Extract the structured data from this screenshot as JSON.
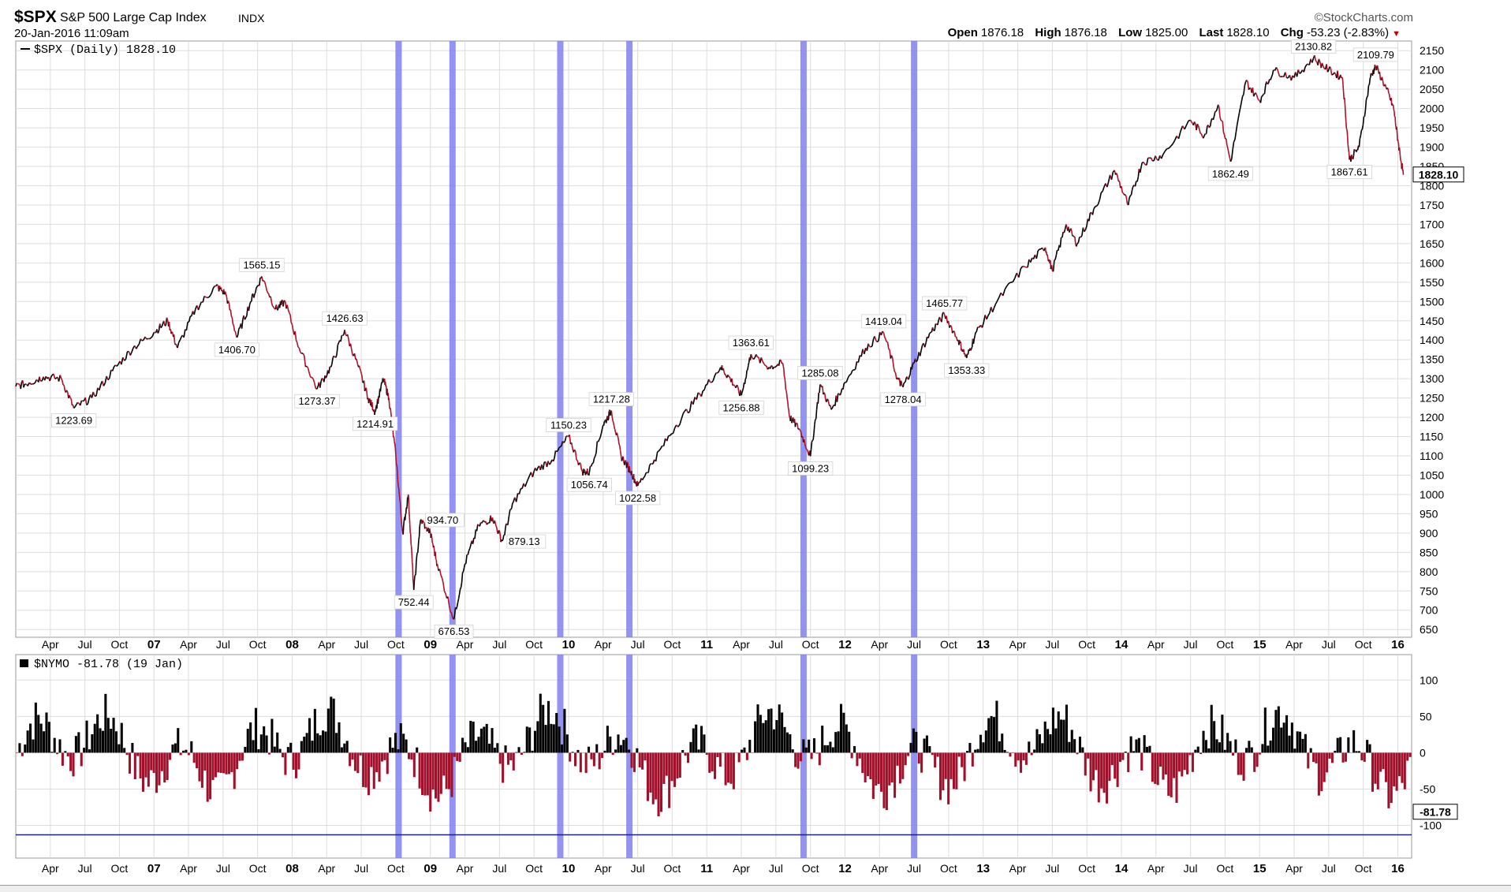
{
  "header": {
    "symbol": "$SPX",
    "name": "S&P 500 Large Cap Index",
    "exchange": "INDX",
    "datetime": "20-Jan-2016 11:09am",
    "brand": "©StockCharts.com",
    "open_label": "Open",
    "open": "1876.18",
    "high_label": "High",
    "high": "1876.18",
    "low_label": "Low",
    "low": "1825.00",
    "last_label": "Last",
    "last": "1828.10",
    "chg_label": "Chg",
    "chg": "-53.23 (-2.83%)"
  },
  "chart_data": [
    {
      "type": "line",
      "title": "$SPX (Daily) 1828.10",
      "legend": "$SPX (Daily) 1828.10",
      "last_value_label": "1828.10",
      "ylim": [
        630,
        2175
      ],
      "yticks": [
        650,
        700,
        750,
        800,
        850,
        900,
        950,
        1000,
        1050,
        1100,
        1150,
        1200,
        1250,
        1300,
        1350,
        1400,
        1450,
        1500,
        1550,
        1600,
        1650,
        1700,
        1750,
        1800,
        1850,
        1900,
        1950,
        2000,
        2050,
        2100,
        2150
      ],
      "xlim": [
        2006.0,
        2016.1
      ],
      "x_ticks": [
        {
          "x": 2006.25,
          "label": "Apr"
        },
        {
          "x": 2006.5,
          "label": "Jul"
        },
        {
          "x": 2006.75,
          "label": "Oct"
        },
        {
          "x": 2007.0,
          "label": "07",
          "major": true
        },
        {
          "x": 2007.25,
          "label": "Apr"
        },
        {
          "x": 2007.5,
          "label": "Jul"
        },
        {
          "x": 2007.75,
          "label": "Oct"
        },
        {
          "x": 2008.0,
          "label": "08",
          "major": true
        },
        {
          "x": 2008.25,
          "label": "Apr"
        },
        {
          "x": 2008.5,
          "label": "Jul"
        },
        {
          "x": 2008.75,
          "label": "Oct"
        },
        {
          "x": 2009.0,
          "label": "09",
          "major": true
        },
        {
          "x": 2009.25,
          "label": "Apr"
        },
        {
          "x": 2009.5,
          "label": "Jul"
        },
        {
          "x": 2009.75,
          "label": "Oct"
        },
        {
          "x": 2010.0,
          "label": "10",
          "major": true
        },
        {
          "x": 2010.25,
          "label": "Apr"
        },
        {
          "x": 2010.5,
          "label": "Jul"
        },
        {
          "x": 2010.75,
          "label": "Oct"
        },
        {
          "x": 2011.0,
          "label": "11",
          "major": true
        },
        {
          "x": 2011.25,
          "label": "Apr"
        },
        {
          "x": 2011.5,
          "label": "Jul"
        },
        {
          "x": 2011.75,
          "label": "Oct"
        },
        {
          "x": 2012.0,
          "label": "12",
          "major": true
        },
        {
          "x": 2012.25,
          "label": "Apr"
        },
        {
          "x": 2012.5,
          "label": "Jul"
        },
        {
          "x": 2012.75,
          "label": "Oct"
        },
        {
          "x": 2013.0,
          "label": "13",
          "major": true
        },
        {
          "x": 2013.25,
          "label": "Apr"
        },
        {
          "x": 2013.5,
          "label": "Jul"
        },
        {
          "x": 2013.75,
          "label": "Oct"
        },
        {
          "x": 2014.0,
          "label": "14",
          "major": true
        },
        {
          "x": 2014.25,
          "label": "Apr"
        },
        {
          "x": 2014.5,
          "label": "Jul"
        },
        {
          "x": 2014.75,
          "label": "Oct"
        },
        {
          "x": 2015.0,
          "label": "15",
          "major": true
        },
        {
          "x": 2015.25,
          "label": "Apr"
        },
        {
          "x": 2015.5,
          "label": "Jul"
        },
        {
          "x": 2015.75,
          "label": "Oct"
        },
        {
          "x": 2016.0,
          "label": "16",
          "major": true
        }
      ],
      "series": [
        {
          "values": [
            [
              2006.0,
              1280
            ],
            [
              2006.1,
              1290
            ],
            [
              2006.2,
              1305
            ],
            [
              2006.33,
              1300
            ],
            [
              2006.42,
              1223.69
            ],
            [
              2006.55,
              1250
            ],
            [
              2006.7,
              1320
            ],
            [
              2006.85,
              1380
            ],
            [
              2007.0,
              1420
            ],
            [
              2007.1,
              1450
            ],
            [
              2007.17,
              1380
            ],
            [
              2007.3,
              1480
            ],
            [
              2007.45,
              1540
            ],
            [
              2007.52,
              1520
            ],
            [
              2007.6,
              1406.7
            ],
            [
              2007.7,
              1500
            ],
            [
              2007.78,
              1565.15
            ],
            [
              2007.88,
              1480
            ],
            [
              2007.95,
              1500
            ],
            [
              2008.05,
              1380
            ],
            [
              2008.18,
              1273.37
            ],
            [
              2008.28,
              1330
            ],
            [
              2008.38,
              1426.63
            ],
            [
              2008.48,
              1330
            ],
            [
              2008.55,
              1250
            ],
            [
              2008.6,
              1214.91
            ],
            [
              2008.66,
              1300
            ],
            [
              2008.7,
              1250
            ],
            [
              2008.75,
              1100
            ],
            [
              2008.8,
              900
            ],
            [
              2008.84,
              1000
            ],
            [
              2008.88,
              752.44
            ],
            [
              2008.93,
              934.7
            ],
            [
              2009.0,
              900
            ],
            [
              2009.05,
              820
            ],
            [
              2009.17,
              676.53
            ],
            [
              2009.25,
              820
            ],
            [
              2009.35,
              920
            ],
            [
              2009.45,
              940
            ],
            [
              2009.52,
              879.13
            ],
            [
              2009.6,
              980
            ],
            [
              2009.75,
              1060
            ],
            [
              2009.88,
              1090
            ],
            [
              2010.0,
              1150.23
            ],
            [
              2010.1,
              1060
            ],
            [
              2010.15,
              1056.74
            ],
            [
              2010.25,
              1180
            ],
            [
              2010.31,
              1217.28
            ],
            [
              2010.38,
              1100
            ],
            [
              2010.45,
              1060
            ],
            [
              2010.5,
              1022.58
            ],
            [
              2010.62,
              1090
            ],
            [
              2010.78,
              1180
            ],
            [
              2010.95,
              1260
            ],
            [
              2011.1,
              1330
            ],
            [
              2011.17,
              1300
            ],
            [
              2011.25,
              1256.88
            ],
            [
              2011.32,
              1363.61
            ],
            [
              2011.45,
              1330
            ],
            [
              2011.55,
              1340
            ],
            [
              2011.6,
              1200
            ],
            [
              2011.67,
              1170
            ],
            [
              2011.75,
              1099.23
            ],
            [
              2011.82,
              1285.08
            ],
            [
              2011.9,
              1220
            ],
            [
              2012.0,
              1290
            ],
            [
              2012.15,
              1380
            ],
            [
              2012.28,
              1419.04
            ],
            [
              2012.38,
              1300
            ],
            [
              2012.42,
              1278.04
            ],
            [
              2012.5,
              1340
            ],
            [
              2012.62,
              1420
            ],
            [
              2012.72,
              1465.77
            ],
            [
              2012.82,
              1400
            ],
            [
              2012.88,
              1353.33
            ],
            [
              2012.95,
              1420
            ],
            [
              2013.1,
              1500
            ],
            [
              2013.3,
              1590
            ],
            [
              2013.45,
              1640
            ],
            [
              2013.5,
              1580
            ],
            [
              2013.6,
              1700
            ],
            [
              2013.68,
              1650
            ],
            [
              2013.8,
              1740
            ],
            [
              2013.95,
              1840
            ],
            [
              2014.05,
              1750
            ],
            [
              2014.15,
              1860
            ],
            [
              2014.3,
              1880
            ],
            [
              2014.5,
              1970
            ],
            [
              2014.6,
              1930
            ],
            [
              2014.7,
              2010
            ],
            [
              2014.79,
              1862.49
            ],
            [
              2014.9,
              2070
            ],
            [
              2015.0,
              2020
            ],
            [
              2015.1,
              2100
            ],
            [
              2015.25,
              2080
            ],
            [
              2015.39,
              2130.82
            ],
            [
              2015.5,
              2100
            ],
            [
              2015.6,
              2080
            ],
            [
              2015.65,
              1867.61
            ],
            [
              2015.72,
              1900
            ],
            [
              2015.8,
              2080
            ],
            [
              2015.84,
              2109.79
            ],
            [
              2015.92,
              2050
            ],
            [
              2015.97,
              2000
            ],
            [
              2016.0,
              1920
            ],
            [
              2016.04,
              1828.1
            ]
          ]
        }
      ],
      "annotations": [
        {
          "x": 2006.42,
          "y": 1223.69,
          "label": "1223.69",
          "pos": "below"
        },
        {
          "x": 2007.6,
          "y": 1406.7,
          "label": "1406.70",
          "pos": "below"
        },
        {
          "x": 2007.78,
          "y": 1565.15,
          "label": "1565.15",
          "pos": "above"
        },
        {
          "x": 2008.18,
          "y": 1273.37,
          "label": "1273.37",
          "pos": "below"
        },
        {
          "x": 2008.38,
          "y": 1426.63,
          "label": "1426.63",
          "pos": "above"
        },
        {
          "x": 2008.6,
          "y": 1214.91,
          "label": "1214.91",
          "pos": "below"
        },
        {
          "x": 2008.93,
          "y": 934.7,
          "label": "934.70",
          "pos": "right"
        },
        {
          "x": 2008.88,
          "y": 752.44,
          "label": "752.44",
          "pos": "below"
        },
        {
          "x": 2009.17,
          "y": 676.53,
          "label": "676.53",
          "pos": "below"
        },
        {
          "x": 2009.52,
          "y": 879.13,
          "label": "879.13",
          "pos": "right"
        },
        {
          "x": 2010.0,
          "y": 1150.23,
          "label": "1150.23",
          "pos": "above"
        },
        {
          "x": 2010.15,
          "y": 1056.74,
          "label": "1056.74",
          "pos": "below"
        },
        {
          "x": 2010.31,
          "y": 1217.28,
          "label": "1217.28",
          "pos": "above"
        },
        {
          "x": 2010.5,
          "y": 1022.58,
          "label": "1022.58",
          "pos": "below"
        },
        {
          "x": 2011.25,
          "y": 1256.88,
          "label": "1256.88",
          "pos": "below"
        },
        {
          "x": 2011.32,
          "y": 1363.61,
          "label": "1363.61",
          "pos": "above"
        },
        {
          "x": 2011.75,
          "y": 1099.23,
          "label": "1099.23",
          "pos": "below"
        },
        {
          "x": 2011.82,
          "y": 1285.08,
          "label": "1285.08",
          "pos": "above"
        },
        {
          "x": 2012.28,
          "y": 1419.04,
          "label": "1419.04",
          "pos": "above"
        },
        {
          "x": 2012.42,
          "y": 1278.04,
          "label": "1278.04",
          "pos": "below"
        },
        {
          "x": 2012.72,
          "y": 1465.77,
          "label": "1465.77",
          "pos": "above"
        },
        {
          "x": 2012.88,
          "y": 1353.33,
          "label": "1353.33",
          "pos": "below"
        },
        {
          "x": 2014.79,
          "y": 1862.49,
          "label": "1862.49",
          "pos": "below"
        },
        {
          "x": 2015.39,
          "y": 2130.82,
          "label": "2130.82",
          "pos": "above"
        },
        {
          "x": 2015.65,
          "y": 1867.61,
          "label": "1867.61",
          "pos": "below"
        },
        {
          "x": 2015.84,
          "y": 2109.79,
          "label": "2109.79",
          "pos": "above"
        }
      ],
      "highlight_dates": [
        2008.77,
        2009.16,
        2009.94,
        2010.44,
        2011.7,
        2012.5
      ],
      "colors": {
        "up": "#000000",
        "down": "#b0102a",
        "highlight": "#8080ee",
        "grid": "#dddddd"
      }
    },
    {
      "type": "bar",
      "title": "$NYMO -81.78 (19 Jan)",
      "legend": "$NYMO -81.78 (19 Jan)",
      "last_value_label": "-81.78",
      "ylim": [
        -145,
        135
      ],
      "yticks": [
        -100,
        -50,
        0,
        50,
        100
      ],
      "reference_line": -113,
      "colors": {
        "positive": "#000000",
        "negative": "#a0102a",
        "reference": "#1a237e"
      }
    }
  ]
}
